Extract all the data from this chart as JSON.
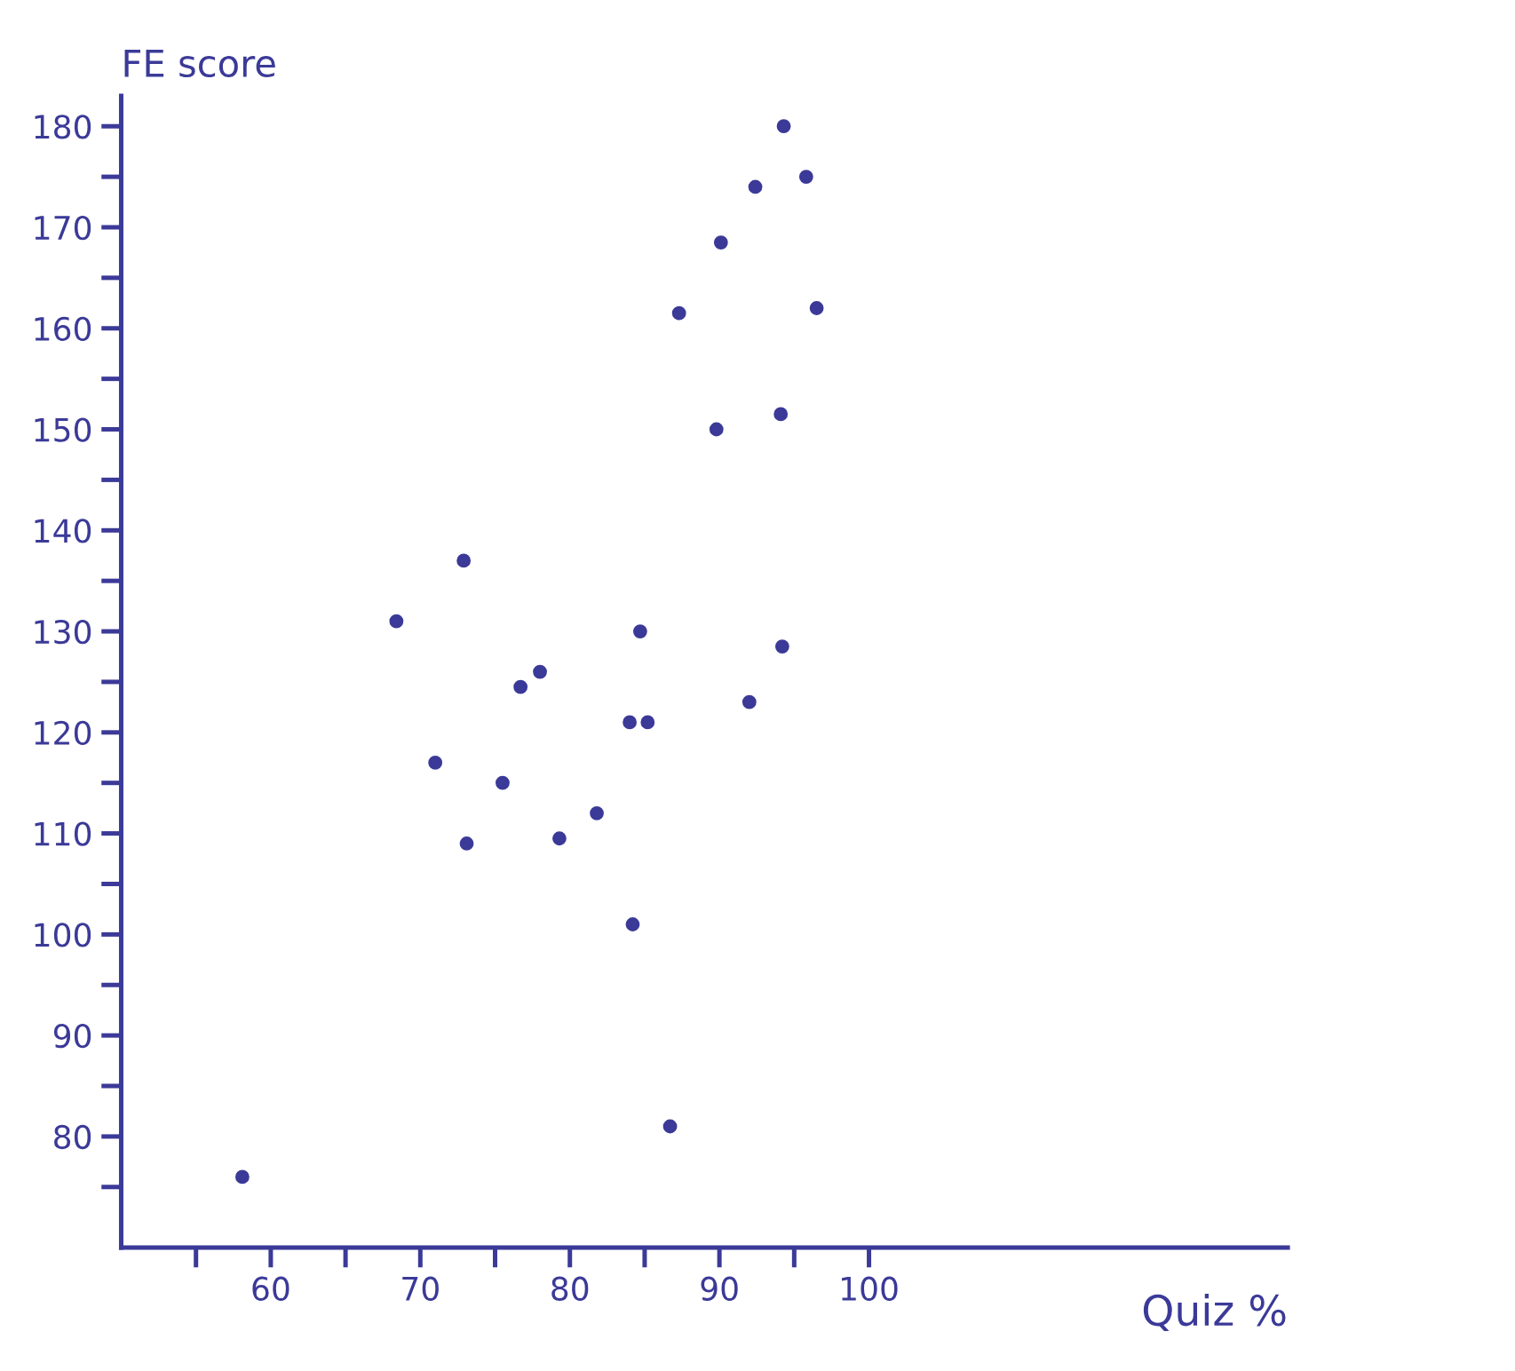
{
  "chart_data": {
    "type": "scatter",
    "xlabel": "Quiz %",
    "ylabel": "FE score",
    "x": [
      58.1,
      68.4,
      72.9,
      71,
      73.1,
      75.5,
      76.7,
      78,
      79.3,
      81.8,
      84,
      85.2,
      84.7,
      84.2,
      86.7,
      87.3,
      89.8,
      90.1,
      92.4,
      92,
      94.1,
      94.2,
      94.3,
      95.8,
      96.5
    ],
    "series": [
      {
        "color": "#3b3a98",
        "values": [
          76,
          131,
          137,
          117,
          109,
          115,
          124.5,
          126,
          109.5,
          112,
          121,
          121,
          130,
          101,
          81,
          161.5,
          150,
          168.5,
          174,
          123,
          151.5,
          128.5,
          180,
          175,
          162
        ]
      }
    ],
    "xlim": [
      50,
      128
    ],
    "ylim": [
      69,
      183
    ],
    "xticks": [
      {
        "value": 55,
        "label": null
      },
      60,
      {
        "value": 65,
        "label": null
      },
      70,
      {
        "value": 75,
        "label": null
      },
      80,
      {
        "value": 85,
        "label": null
      },
      90,
      {
        "value": 95,
        "label": null
      },
      100
    ],
    "yticks": [
      {
        "value": 75,
        "label": null
      },
      80,
      {
        "value": 85,
        "label": null
      },
      90,
      {
        "value": 95,
        "label": null
      },
      100,
      {
        "value": 105,
        "label": null
      },
      110,
      {
        "value": 115,
        "label": null
      },
      120,
      {
        "value": 125,
        "label": null
      },
      130,
      {
        "value": 135,
        "label": null
      },
      140,
      {
        "value": 145,
        "label": null
      },
      150,
      {
        "value": 155,
        "label": null
      },
      160,
      {
        "value": 165,
        "label": null
      },
      170,
      {
        "value": 175,
        "label": null
      },
      180
    ],
    "grid": false,
    "marker": "circle"
  }
}
